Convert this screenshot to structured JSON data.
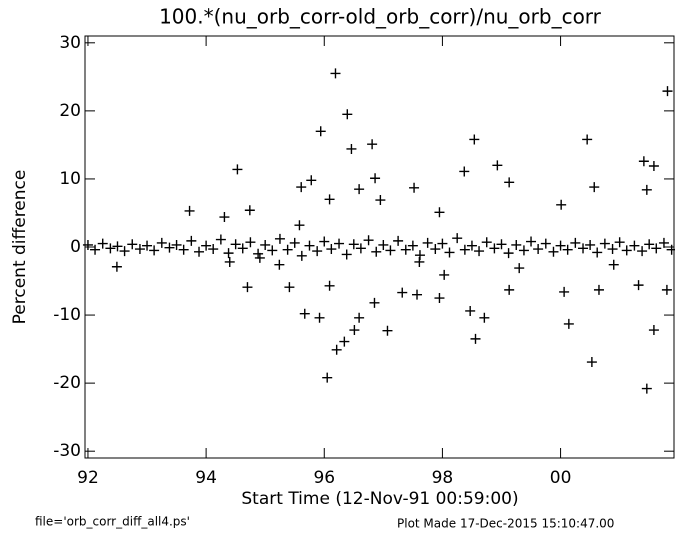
{
  "chart_data": {
    "type": "scatter",
    "title": "100.*(nu_orb_corr-old_orb_corr)/nu_orb_corr",
    "x_label": "Start Time (12-Nov-91 00:59:00)",
    "y_label": "Percent difference",
    "file_note": "file='orb_corr_diff_all4.ps'",
    "date_note": "Plot Made 17-Dec-2015 15:10:47.00",
    "color": "#000000",
    "xlim": [
      91.95,
      101.92
    ],
    "ylim": [
      -31,
      31
    ],
    "xticks": [
      92,
      94,
      96,
      98,
      {
        "value": 100,
        "label": "00"
      }
    ],
    "yticks": [
      -30,
      -20,
      -10,
      0,
      10,
      20,
      30
    ],
    "x": [
      96.19,
      96.39,
      95.94,
      96.46,
      96.81,
      101.81,
      94.53,
      98.54,
      100.45,
      101.41,
      101.58,
      98.93,
      98.37,
      95.61,
      95.78,
      96.59,
      96.86,
      97.52,
      99.13,
      100.57,
      101.46,
      95.58,
      93.72,
      94.31,
      94.74,
      100.01,
      96.09,
      96.95,
      97.95,
      95.67,
      95.92,
      96.05,
      96.21,
      96.34,
      96.51,
      96.59,
      97.07,
      96.85,
      97.57,
      98.56,
      98.47,
      98.71,
      100.14,
      100.53,
      101.46,
      101.58,
      100.06,
      95.41,
      94.7,
      92.49,
      96.09,
      97.32,
      97.95,
      99.13,
      100.65,
      101.32,
      101.8,
      95.24,
      94.4,
      94.91,
      97.61,
      98.03,
      99.3,
      100.9,
      92.0,
      92.12,
      92.25,
      92.38,
      92.5,
      92.62,
      92.75,
      92.88,
      93.0,
      93.12,
      93.25,
      93.38,
      93.5,
      93.62,
      93.75,
      93.88,
      94.0,
      94.12,
      94.25,
      94.38,
      94.5,
      94.62,
      94.75,
      94.88,
      95.0,
      95.12,
      95.25,
      95.38,
      95.5,
      95.62,
      95.75,
      95.88,
      96.0,
      96.12,
      96.25,
      96.38,
      96.5,
      96.62,
      96.75,
      96.88,
      97.0,
      97.12,
      97.25,
      97.38,
      97.5,
      97.62,
      97.75,
      97.88,
      98.0,
      98.12,
      98.25,
      98.38,
      98.5,
      98.62,
      98.75,
      98.88,
      99.0,
      99.12,
      99.25,
      99.38,
      99.5,
      99.62,
      99.75,
      99.88,
      100.0,
      100.12,
      100.25,
      100.38,
      100.5,
      100.62,
      100.75,
      100.88,
      101.0,
      101.12,
      101.25,
      101.38,
      101.5,
      101.62,
      101.75,
      101.88
    ],
    "values": [
      25.5,
      19.5,
      17.0,
      14.4,
      15.1,
      22.9,
      11.4,
      15.8,
      15.8,
      12.6,
      11.9,
      12.0,
      11.1,
      8.8,
      9.8,
      8.5,
      10.1,
      8.7,
      9.5,
      8.8,
      8.4,
      3.2,
      5.3,
      4.4,
      5.4,
      6.2,
      7.0,
      6.9,
      5.1,
      -9.8,
      -10.4,
      -19.2,
      -15.1,
      -13.9,
      -12.2,
      -10.4,
      -12.3,
      -8.2,
      -7.0,
      -13.5,
      -9.4,
      -10.4,
      -11.3,
      -16.9,
      -20.8,
      -12.2,
      -6.6,
      -5.9,
      -5.9,
      -2.9,
      -5.7,
      -6.7,
      -7.5,
      -6.3,
      -6.3,
      -5.6,
      -6.3,
      -2.6,
      -2.2,
      -1.6,
      -2.2,
      -4.1,
      -3.1,
      -2.6,
      0.3,
      -0.4,
      0.5,
      -0.2,
      0.1,
      -0.6,
      0.4,
      -0.3,
      0.2,
      -0.5,
      0.6,
      -0.1,
      0.3,
      -0.4,
      0.9,
      -0.7,
      0.2,
      -0.3,
      1.1,
      -0.9,
      0.4,
      -0.2,
      0.7,
      -1.0,
      0.3,
      -0.5,
      1.2,
      -0.4,
      0.6,
      -1.3,
      0.2,
      -0.6,
      0.8,
      -0.3,
      0.5,
      -1.1,
      0.4,
      -0.2,
      1.0,
      -0.7,
      0.3,
      -0.5,
      0.9,
      -0.4,
      0.2,
      -1.2,
      0.6,
      -0.3,
      0.5,
      -0.8,
      1.3,
      -0.4,
      0.2,
      -0.6,
      0.7,
      -0.2,
      0.4,
      -0.9,
      0.3,
      -0.5,
      0.8,
      -0.3,
      0.5,
      -0.7,
      0.2,
      -0.4,
      0.6,
      -0.2,
      0.3,
      -0.8,
      0.5,
      -0.3,
      0.7,
      -0.5,
      0.2,
      -0.6,
      0.4,
      -0.2,
      0.6,
      -0.4
    ]
  }
}
